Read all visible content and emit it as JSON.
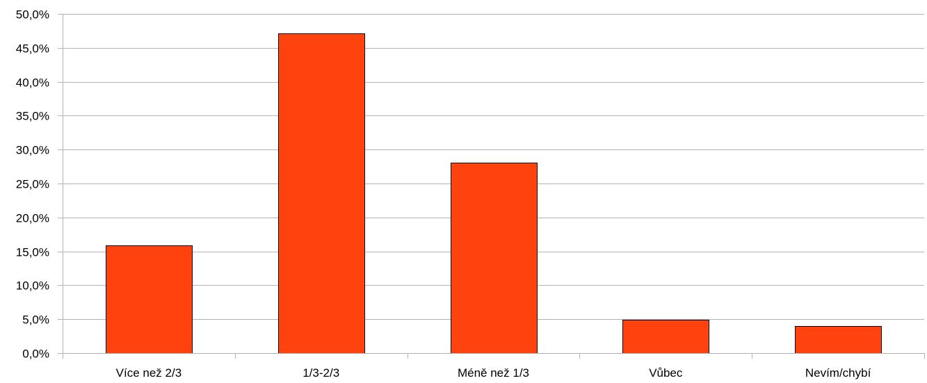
{
  "chart_data": {
    "type": "bar",
    "title": "",
    "xlabel": "",
    "ylabel": "",
    "categories": [
      "Více než 2/3",
      "1/3-2/3",
      "Méně než 1/3",
      "Vůbec",
      "Nevím/chybí"
    ],
    "values": [
      15.9,
      47.1,
      28.1,
      4.9,
      4.0
    ],
    "value_unit": "%",
    "ylim": [
      0,
      50
    ],
    "ytick_step": 5,
    "ytick_labels": [
      "0,0%",
      "5,0%",
      "10,0%",
      "15,0%",
      "20,0%",
      "25,0%",
      "30,0%",
      "35,0%",
      "40,0%",
      "45,0%",
      "50,0%"
    ],
    "grid": true,
    "legend": "none",
    "colors": {
      "bar_fill": "#ff420e",
      "bar_stroke": "#000000",
      "grid": "#b3b3b3",
      "text": "#000000"
    }
  }
}
